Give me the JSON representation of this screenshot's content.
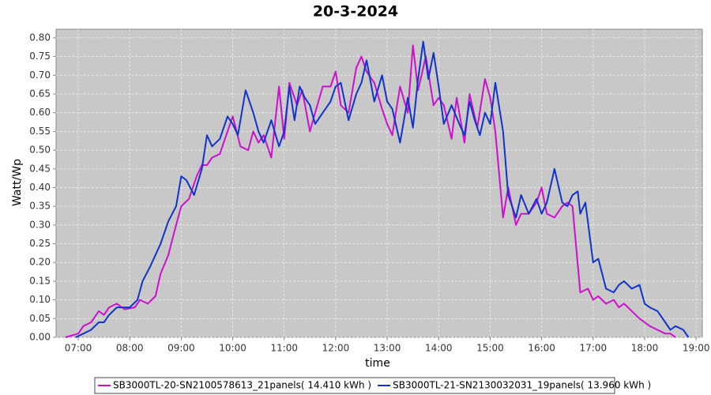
{
  "chart_data": {
    "type": "line",
    "title": "20-3-2024",
    "xlabel": "time",
    "ylabel": "Watt/Wp",
    "xlim": [
      6.57,
      19.12
    ],
    "ylim": [
      0,
      0.823
    ],
    "grid": true,
    "legend": "bottom",
    "xticks": [
      {
        "value": 7,
        "label": "07:00"
      },
      {
        "value": 8,
        "label": "08:00"
      },
      {
        "value": 9,
        "label": "09:00"
      },
      {
        "value": 10,
        "label": "10:00"
      },
      {
        "value": 11,
        "label": "11:00"
      },
      {
        "value": 12,
        "label": "12:00"
      },
      {
        "value": 13,
        "label": "13:00"
      },
      {
        "value": 14,
        "label": "14:00"
      },
      {
        "value": 15,
        "label": "15:00"
      },
      {
        "value": 16,
        "label": "16:00"
      },
      {
        "value": 17,
        "label": "17:00"
      },
      {
        "value": 18,
        "label": "18:00"
      },
      {
        "value": 19,
        "label": "19:00"
      }
    ],
    "yticks": [
      {
        "value": 0,
        "label": "0.00"
      },
      0.05,
      {
        "value": 0.1,
        "label": "0.10"
      },
      0.15,
      {
        "value": 0.2,
        "label": "0.20"
      },
      0.25,
      {
        "value": 0.3,
        "label": "0.30"
      },
      0.35,
      {
        "value": 0.4,
        "label": "0.40"
      },
      0.45,
      {
        "value": 0.5,
        "label": "0.50"
      },
      0.55,
      {
        "value": 0.6,
        "label": "0.60"
      },
      0.65,
      {
        "value": 0.7,
        "label": "0.70"
      },
      0.75,
      {
        "value": 0.8,
        "label": "0.80"
      }
    ],
    "series": [
      {
        "name": "SB3000TL-20-SN2100578613_21panels( 14.410 kWh )",
        "color": "#cc11cc",
        "x": [
          6.75,
          7.0,
          7.1,
          7.25,
          7.4,
          7.5,
          7.6,
          7.75,
          7.9,
          8.1,
          8.2,
          8.35,
          8.5,
          8.6,
          8.75,
          8.9,
          9.0,
          9.15,
          9.3,
          9.4,
          9.5,
          9.6,
          9.75,
          9.9,
          10.0,
          10.15,
          10.3,
          10.4,
          10.5,
          10.6,
          10.75,
          10.9,
          11.0,
          11.1,
          11.25,
          11.35,
          11.5,
          11.6,
          11.75,
          11.9,
          12.0,
          12.1,
          12.25,
          12.4,
          12.5,
          12.6,
          12.75,
          12.9,
          13.0,
          13.1,
          13.25,
          13.4,
          13.5,
          13.6,
          13.75,
          13.9,
          14.0,
          14.1,
          14.25,
          14.35,
          14.5,
          14.6,
          14.75,
          14.9,
          15.0,
          15.1,
          15.25,
          15.35,
          15.5,
          15.6,
          15.75,
          15.9,
          16.0,
          16.1,
          16.25,
          16.4,
          16.5,
          16.6,
          16.75,
          16.9,
          17.0,
          17.1,
          17.25,
          17.4,
          17.5,
          17.6,
          17.75,
          17.9,
          18.0,
          18.1,
          18.25,
          18.4,
          18.5,
          18.6
        ],
        "values": [
          0,
          0.01,
          0.03,
          0.04,
          0.07,
          0.06,
          0.08,
          0.09,
          0.075,
          0.08,
          0.1,
          0.09,
          0.11,
          0.17,
          0.22,
          0.3,
          0.35,
          0.37,
          0.43,
          0.46,
          0.46,
          0.48,
          0.49,
          0.55,
          0.59,
          0.51,
          0.5,
          0.55,
          0.52,
          0.54,
          0.48,
          0.67,
          0.53,
          0.68,
          0.62,
          0.66,
          0.55,
          0.6,
          0.67,
          0.67,
          0.71,
          0.62,
          0.6,
          0.72,
          0.75,
          0.71,
          0.68,
          0.61,
          0.57,
          0.54,
          0.67,
          0.6,
          0.78,
          0.66,
          0.75,
          0.62,
          0.64,
          0.62,
          0.53,
          0.64,
          0.52,
          0.65,
          0.56,
          0.69,
          0.64,
          0.55,
          0.32,
          0.4,
          0.3,
          0.33,
          0.33,
          0.36,
          0.4,
          0.33,
          0.32,
          0.35,
          0.36,
          0.35,
          0.12,
          0.13,
          0.1,
          0.11,
          0.09,
          0.1,
          0.08,
          0.09,
          0.07,
          0.05,
          0.04,
          0.03,
          0.02,
          0.01,
          0.01,
          0
        ]
      },
      {
        "name": "SB3000TL-21-SN2130032031_19panels( 13.960 kWh )",
        "color": "#1133cc",
        "x": [
          6.95,
          7.1,
          7.25,
          7.4,
          7.5,
          7.6,
          7.75,
          7.9,
          8.0,
          8.15,
          8.25,
          8.4,
          8.5,
          8.6,
          8.75,
          8.9,
          9.0,
          9.1,
          9.25,
          9.4,
          9.5,
          9.6,
          9.75,
          9.9,
          10.0,
          10.1,
          10.25,
          10.4,
          10.5,
          10.6,
          10.75,
          10.9,
          11.0,
          11.1,
          11.2,
          11.3,
          11.4,
          11.5,
          11.6,
          11.75,
          11.9,
          12.0,
          12.1,
          12.25,
          12.4,
          12.5,
          12.6,
          12.75,
          12.9,
          13.0,
          13.1,
          13.25,
          13.4,
          13.5,
          13.6,
          13.7,
          13.8,
          13.9,
          14.0,
          14.1,
          14.25,
          14.4,
          14.5,
          14.6,
          14.7,
          14.8,
          14.9,
          15.0,
          15.1,
          15.25,
          15.35,
          15.5,
          15.6,
          15.75,
          15.9,
          16.0,
          16.1,
          16.25,
          16.4,
          16.5,
          16.6,
          16.7,
          16.75,
          16.85,
          17.0,
          17.1,
          17.25,
          17.4,
          17.5,
          17.6,
          17.75,
          17.9,
          18.0,
          18.1,
          18.25,
          18.4,
          18.5,
          18.6,
          18.75,
          18.85
        ],
        "values": [
          0,
          0.01,
          0.02,
          0.04,
          0.04,
          0.06,
          0.08,
          0.08,
          0.08,
          0.1,
          0.15,
          0.19,
          0.22,
          0.25,
          0.31,
          0.35,
          0.43,
          0.42,
          0.38,
          0.45,
          0.54,
          0.51,
          0.53,
          0.59,
          0.57,
          0.54,
          0.66,
          0.6,
          0.55,
          0.52,
          0.58,
          0.51,
          0.55,
          0.67,
          0.58,
          0.67,
          0.64,
          0.62,
          0.57,
          0.6,
          0.63,
          0.67,
          0.68,
          0.58,
          0.65,
          0.68,
          0.74,
          0.63,
          0.7,
          0.63,
          0.61,
          0.52,
          0.64,
          0.56,
          0.69,
          0.79,
          0.69,
          0.76,
          0.67,
          0.57,
          0.62,
          0.57,
          0.54,
          0.63,
          0.58,
          0.54,
          0.6,
          0.57,
          0.68,
          0.55,
          0.38,
          0.32,
          0.38,
          0.33,
          0.37,
          0.33,
          0.36,
          0.45,
          0.36,
          0.35,
          0.38,
          0.39,
          0.33,
          0.36,
          0.2,
          0.21,
          0.13,
          0.12,
          0.14,
          0.15,
          0.13,
          0.14,
          0.09,
          0.08,
          0.07,
          0.04,
          0.02,
          0.03,
          0.02,
          0
        ]
      }
    ]
  }
}
